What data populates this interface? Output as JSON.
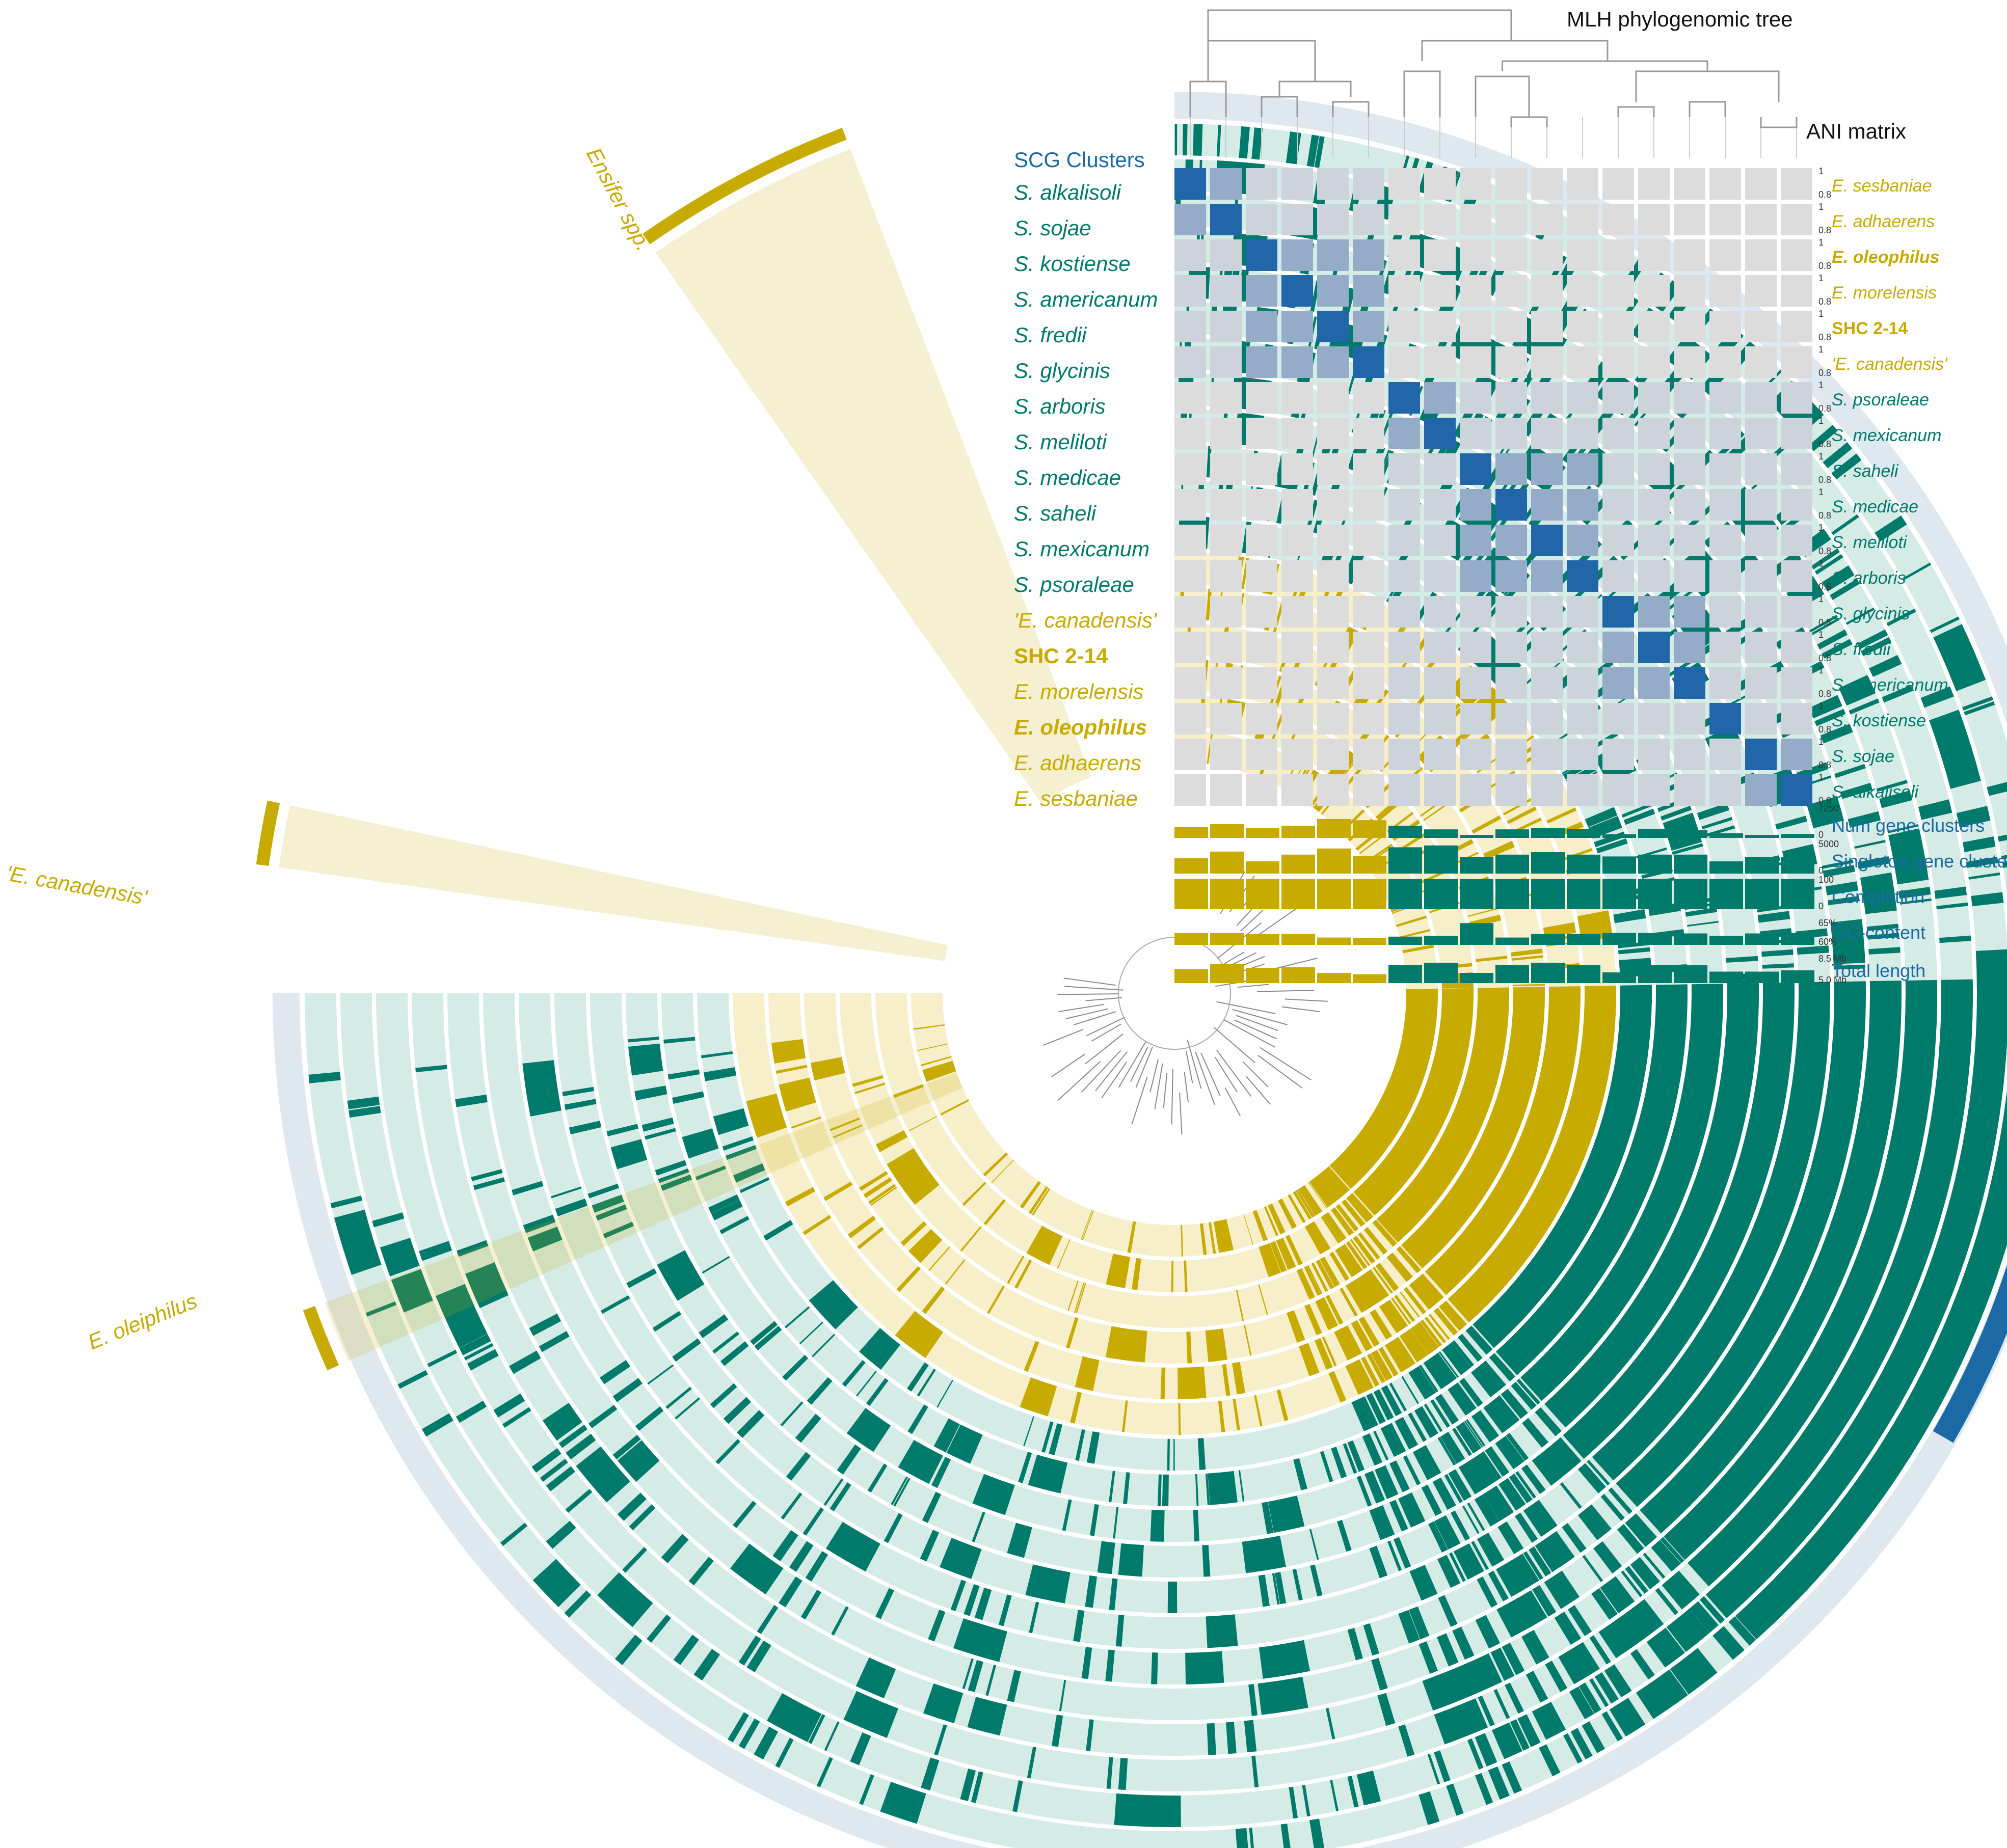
{
  "titles": {
    "tree": "MLH phylogenomic tree",
    "ani": "ANI matrix",
    "scg": "SCG Clusters"
  },
  "genomes": [
    {
      "name": "S. alkalisoli",
      "genus": "S"
    },
    {
      "name": "S. sojae",
      "genus": "S"
    },
    {
      "name": "S. kostiense",
      "genus": "S"
    },
    {
      "name": "S. americanum",
      "genus": "S"
    },
    {
      "name": "S. fredii",
      "genus": "S"
    },
    {
      "name": "S. glycinis",
      "genus": "S"
    },
    {
      "name": "S. arboris",
      "genus": "S"
    },
    {
      "name": "S. meliloti",
      "genus": "S"
    },
    {
      "name": "S. medicae",
      "genus": "S"
    },
    {
      "name": "S. saheli",
      "genus": "S"
    },
    {
      "name": "S. mexicanum",
      "genus": "S"
    },
    {
      "name": "S. psoraleae",
      "genus": "S"
    },
    {
      "name": "'E. canadensis'",
      "genus": "E"
    },
    {
      "name": "SHC 2-14",
      "genus": "B"
    },
    {
      "name": "E. morelensis",
      "genus": "E"
    },
    {
      "name": "E. oleophilus",
      "genus": "BE"
    },
    {
      "name": "E. adhaerens",
      "genus": "E"
    },
    {
      "name": "E. sesbaniae",
      "genus": "E"
    }
  ],
  "ani_labels": [
    {
      "name": "E. sesbaniae",
      "genus": "E"
    },
    {
      "name": "E. adhaerens",
      "genus": "E"
    },
    {
      "name": "E. oleophilus",
      "genus": "BE"
    },
    {
      "name": "E. morelensis",
      "genus": "E"
    },
    {
      "name": "SHC 2-14",
      "genus": "B"
    },
    {
      "name": "'E. canadensis'",
      "genus": "E"
    },
    {
      "name": "S. psoraleae",
      "genus": "S"
    },
    {
      "name": "S. mexicanum",
      "genus": "S"
    },
    {
      "name": "S. saheli",
      "genus": "S"
    },
    {
      "name": "S. medicae",
      "genus": "S"
    },
    {
      "name": "S. meliloti",
      "genus": "S"
    },
    {
      "name": "S. arboris",
      "genus": "S"
    },
    {
      "name": "S. glycinis",
      "genus": "S"
    },
    {
      "name": "S. fredii",
      "genus": "S"
    },
    {
      "name": "S. americanum",
      "genus": "S"
    },
    {
      "name": "S. kostiense",
      "genus": "S"
    },
    {
      "name": "S. sojae",
      "genus": "S"
    },
    {
      "name": "S. alkalisoli",
      "genus": "S"
    }
  ],
  "ani_scale": {
    "max": "1",
    "min": "0.8"
  },
  "ani_groups": [
    [
      0,
      1
    ],
    [
      2,
      3,
      4,
      5
    ],
    [
      6,
      7
    ],
    [
      8,
      9,
      10,
      11
    ],
    [
      12,
      13,
      14
    ],
    [
      15
    ],
    [
      16,
      17
    ]
  ],
  "layers": [
    {
      "name": "Num gene clusters",
      "scale_max": "7250",
      "scale_min": "0"
    },
    {
      "name": "Singleton gene clusters",
      "scale_max": "5000",
      "scale_min": "0"
    },
    {
      "name": "Completion",
      "scale_max": "100",
      "scale_min": "0"
    },
    {
      "name": "GC-content",
      "scale_max": "65%",
      "scale_min": "60%"
    },
    {
      "name": "Total length",
      "scale_max": "8.5 Mb",
      "scale_min": "5.0 Mb"
    }
  ],
  "bar_values": {
    "num_gene_clusters": [
      0.36,
      0.45,
      0.33,
      0.4,
      0.62,
      0.58,
      0.4,
      0.28,
      0.1,
      0.28,
      0.32,
      0.3,
      0.12,
      0.3,
      0.26,
      0.15,
      0.1,
      0.13
    ],
    "singleton_gene_clusters": [
      0.5,
      0.72,
      0.4,
      0.62,
      0.82,
      0.58,
      0.86,
      0.92,
      0.55,
      0.62,
      0.7,
      0.62,
      0.56,
      0.62,
      0.62,
      0.4,
      0.55,
      0.55
    ],
    "completion": [
      0.99,
      0.99,
      0.99,
      0.99,
      0.99,
      0.99,
      0.99,
      0.99,
      0.99,
      0.99,
      0.99,
      0.99,
      0.99,
      0.99,
      0.99,
      0.99,
      0.99,
      0.99
    ],
    "gc_content": [
      0.52,
      0.52,
      0.48,
      0.48,
      0.32,
      0.3,
      0.36,
      0.4,
      0.95,
      0.32,
      0.48,
      0.48,
      0.52,
      0.52,
      0.5,
      0.4,
      0.5,
      0.52
    ],
    "total_length": [
      0.55,
      0.75,
      0.6,
      0.62,
      0.4,
      0.35,
      0.72,
      0.8,
      0.4,
      0.72,
      0.8,
      0.7,
      0.42,
      0.72,
      0.7,
      0.45,
      0.45,
      0.5
    ]
  },
  "highlights": [
    {
      "label": "Ensifer spp."
    },
    {
      "label": "'E. canadensis'"
    },
    {
      "label": "E. oleiphilus"
    }
  ],
  "colors": {
    "sino": "#007a6b",
    "ensifer": "#c7ab00",
    "sino_bg": "#d5ebe6",
    "ensifer_bg": "#f7efca",
    "outer_ring": "#e0e8ef",
    "scg_blue": "#1b6aa5",
    "ani_high": "#2166a9",
    "ani_mid": "#94acc8",
    "ani_low": "#dcdcdc"
  }
}
